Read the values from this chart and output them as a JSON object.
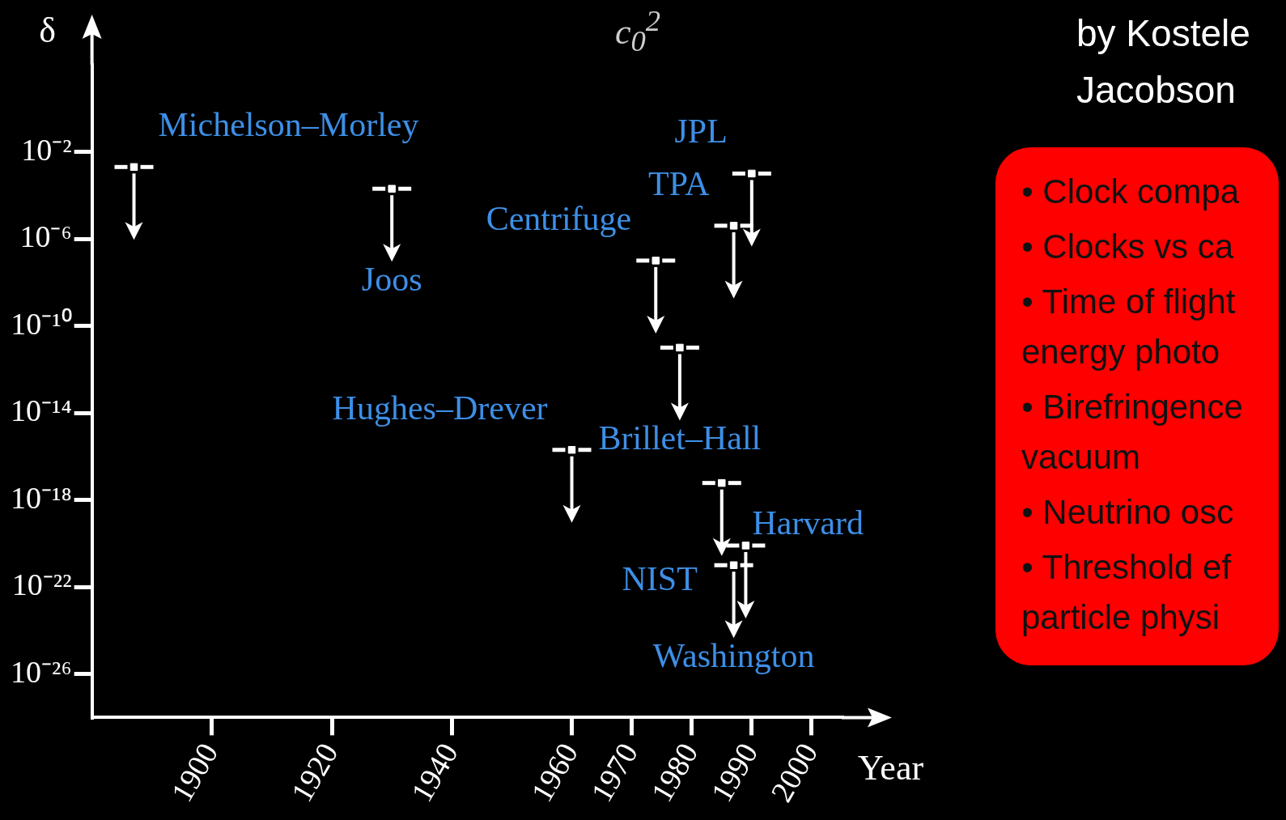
{
  "chart_data": [
    {
      "type": "scatter",
      "marker": "square",
      "xlabel": "Year",
      "ylabel": "δ",
      "log": "y",
      "x": [
        1887,
        1930,
        1960,
        1974,
        1978,
        1985,
        1987,
        1987,
        1989,
        1990
      ],
      "series": [
        {
          "color": "#ffffff",
          "values": [
            0.002,
            0.0002,
            2e-16,
            1e-07,
            1e-11,
            6e-18,
            4e-06,
            1e-21,
            8e-21,
            0.001
          ]
        }
      ],
      "xlim": [
        1880,
        2005
      ],
      "xticks": [
        1900,
        1920,
        1940,
        1960,
        1970,
        1980,
        1990,
        2000
      ],
      "ylim": [
        1e-28,
        100
      ],
      "yticks": [
        {
          "value": 0.01,
          "label": "10⁻²"
        },
        {
          "value": 1e-06,
          "label": "10⁻⁶"
        },
        {
          "value": 1e-10,
          "label": "10⁻¹⁰"
        },
        {
          "value": 1e-14,
          "label": "10⁻¹⁴"
        },
        {
          "value": 1e-18,
          "label": "10⁻¹⁸"
        },
        {
          "value": 1e-22,
          "label": "10⁻²²"
        },
        {
          "value": 1e-26,
          "label": "10⁻²⁶"
        }
      ],
      "annotations": [
        "c$_{0}$$^{2}$",
        "by Kostele",
        "Jacobson",
        {
          "text": "Michelson–Morley",
          "x": 1887,
          "y": 0.002
        },
        {
          "text": "Joos",
          "x": 1930,
          "y": 0.0002
        },
        {
          "text": "Hughes–Drever",
          "x": 1960,
          "y": 2e-16
        },
        {
          "text": "Centrifuge",
          "x": 1974,
          "y": 1e-07
        },
        {
          "text": "Brillet–Hall",
          "x": 1978,
          "y": 1e-11
        },
        {
          "text": "NIST",
          "x": 1985,
          "y": 6e-18
        },
        {
          "text": "TPA",
          "x": 1987,
          "y": 4e-06
        },
        {
          "text": "Washington",
          "x": 1987,
          "y": 1e-21
        },
        {
          "text": "Harvard",
          "x": 1989,
          "y": 8e-21
        },
        {
          "text": "JPL",
          "x": 1990,
          "y": 0.001
        }
      ]
    },
    {
      "type": "other",
      "annotations": [
        "• Clock compa",
        "• Clocks vs ca",
        "• Time of flight\nenergy photo",
        "• Birefringence\nvacuum",
        "• Neutrino osc",
        "• Threshold ef\nparticle physi"
      ]
    }
  ]
}
